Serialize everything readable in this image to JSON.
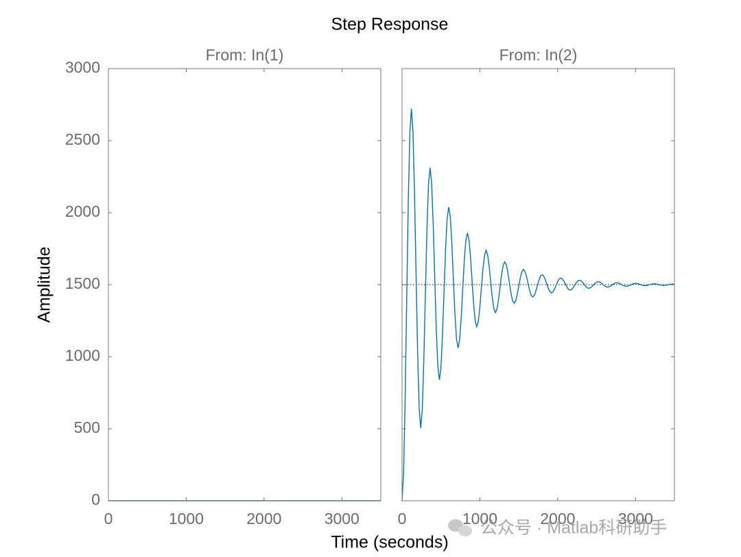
{
  "title": "Step Response",
  "xlabel": "Time (seconds)",
  "ylabel": "Amplitude",
  "watermark": "公众号 · Matlab科研助手",
  "chart_data": [
    {
      "type": "line",
      "title": "From: In(1)",
      "x": [
        0,
        3500
      ],
      "series": [
        {
          "color": "#0072bd",
          "values": [
            0,
            0
          ]
        }
      ],
      "xlim": [
        0,
        3500
      ],
      "ylim": [
        0,
        3000
      ],
      "xticks": [
        0,
        1000,
        2000,
        3000
      ],
      "yticks": [
        0,
        500,
        1000,
        1500,
        2000,
        2500,
        3000
      ],
      "ytick_labels": true
    },
    {
      "type": "line",
      "title": "From: In(2)",
      "x": [
        0,
        20,
        40,
        60,
        80,
        100,
        120,
        140,
        160,
        180,
        200,
        220,
        240,
        260,
        280,
        300,
        320,
        340,
        360,
        380,
        400,
        420,
        440,
        460,
        480,
        500,
        520,
        540,
        560,
        580,
        600,
        620,
        640,
        660,
        680,
        700,
        720,
        740,
        760,
        780,
        800,
        820,
        840,
        860,
        880,
        900,
        920,
        940,
        960,
        980,
        1000,
        1020,
        1040,
        1060,
        1080,
        1100,
        1120,
        1140,
        1160,
        1180,
        1200,
        1220,
        1240,
        1260,
        1280,
        1300,
        1320,
        1340,
        1360,
        1380,
        1400,
        1420,
        1440,
        1460,
        1480,
        1500,
        1520,
        1540,
        1560,
        1580,
        1600,
        1620,
        1640,
        1660,
        1680,
        1700,
        1720,
        1740,
        1760,
        1780,
        1800,
        1820,
        1840,
        1860,
        1880,
        1900,
        1920,
        1940,
        1960,
        1980,
        2000,
        2020,
        2040,
        2060,
        2080,
        2100,
        2120,
        2140,
        2160,
        2180,
        2200,
        2220,
        2240,
        2260,
        2280,
        2300,
        2320,
        2340,
        2360,
        2380,
        2400,
        2420,
        2440,
        2460,
        2480,
        2500,
        2520,
        2540,
        2560,
        2580,
        2600,
        2620,
        2640,
        2660,
        2680,
        2700,
        2720,
        2740,
        2760,
        2780,
        2800,
        2820,
        2840,
        2860,
        2880,
        2900,
        2920,
        2940,
        2960,
        2980,
        3000,
        3020,
        3040,
        3060,
        3080,
        3100,
        3120,
        3140,
        3160,
        3180,
        3200,
        3220,
        3240,
        3260,
        3280,
        3300,
        3320,
        3340,
        3360,
        3380,
        3400,
        3420,
        3440,
        3460,
        3480,
        3500
      ],
      "series": [
        {
          "color": "#0072bd",
          "values": [
            0,
            197,
            720,
            1412,
            2080,
            2554,
            2722,
            2562,
            2135,
            1572,
            1027,
            641,
            504,
            635,
            982,
            1441,
            1885,
            2200,
            2312,
            2205,
            1922,
            1548,
            1186,
            930,
            839,
            926,
            1156,
            1461,
            1756,
            1965,
            2039,
            1968,
            1780,
            1532,
            1291,
            1121,
            1061,
            1119,
            1272,
            1474,
            1670,
            1809,
            1858,
            1811,
            1686,
            1521,
            1362,
            1249,
            1208,
            1247,
            1348,
            1483,
            1613,
            1705,
            1738,
            1706,
            1624,
            1514,
            1408,
            1333,
            1306,
            1332,
            1399,
            1489,
            1575,
            1636,
            1658,
            1637,
            1582,
            1509,
            1439,
            1389,
            1371,
            1388,
            1433,
            1492,
            1550,
            1590,
            1605,
            1591,
            1555,
            1506,
            1459,
            1426,
            1415,
            1426,
            1456,
            1495,
            1533,
            1560,
            1570,
            1560,
            1536,
            1504,
            1473,
            1451,
            1443,
            1451,
            1471,
            1497,
            1522,
            1540,
            1546,
            1540,
            1524,
            1503,
            1482,
            1468,
            1462,
            1467,
            1480,
            1498,
            1515,
            1527,
            1531,
            1527,
            1516,
            1502,
            1488,
            1478,
            1475,
            1478,
            1487,
            1499,
            1510,
            1518,
            1520,
            1518,
            1511,
            1501,
            1492,
            1486,
            1483,
            1486,
            1491,
            1499,
            1506,
            1512,
            1514,
            1512,
            1507,
            1501,
            1495,
            1491,
            1489,
            1490,
            1494,
            1499,
            1504,
            1508,
            1509,
            1508,
            1505,
            1501,
            1497,
            1494,
            1493,
            1494,
            1496,
            1500,
            1503,
            1505,
            1506,
            1505,
            1503,
            1500,
            1498,
            1496,
            1495,
            1496,
            1497,
            1500,
            1502,
            1503,
            1504,
            1503
          ]
        }
      ],
      "steady_state": 1500,
      "xlim": [
        0,
        3500
      ],
      "ylim": [
        0,
        3000
      ],
      "xticks": [
        0,
        1000,
        2000,
        3000
      ],
      "yticks": [
        0,
        500,
        1000,
        1500,
        2000,
        2500,
        3000
      ],
      "ytick_labels": false
    }
  ]
}
